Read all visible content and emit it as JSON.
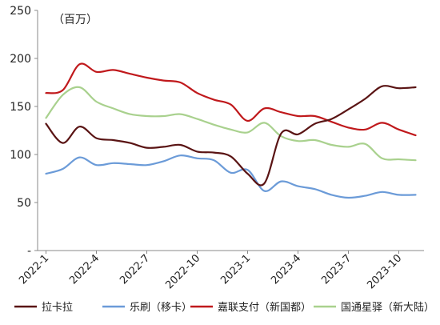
{
  "chart_data": {
    "type": "line",
    "unit_label": "（百万）",
    "ylim": [
      0,
      250
    ],
    "yticks": [
      {
        "value": 250,
        "label": "250"
      },
      {
        "value": 200,
        "label": "200"
      },
      {
        "value": 150,
        "label": "150"
      },
      {
        "value": 100,
        "label": "100"
      },
      {
        "value": 50,
        "label": "50"
      },
      {
        "value": 0,
        "label": "-"
      }
    ],
    "x": [
      "2022-1",
      "2022-2",
      "2022-3",
      "2022-4",
      "2022-5",
      "2022-6",
      "2022-7",
      "2022-8",
      "2022-9",
      "2022-10",
      "2022-11",
      "2022-12",
      "2023-1",
      "2023-2",
      "2023-3",
      "2023-4",
      "2023-5",
      "2023-6",
      "2023-7",
      "2023-8",
      "2023-9",
      "2023-10",
      "2023-11"
    ],
    "xticks": [
      "2022-1",
      "2022-4",
      "2022-7",
      "2022-10",
      "2023-1",
      "2023-4",
      "2023-7",
      "2023-10"
    ],
    "grid": false,
    "legend_position": "bottom",
    "series": [
      {
        "name": "拉卡拉",
        "color": "#5a1414",
        "values": [
          132,
          112,
          129,
          117,
          115,
          112,
          107,
          108,
          110,
          103,
          102,
          98,
          80,
          70,
          122,
          121,
          132,
          137,
          147,
          158,
          171,
          169,
          170
        ]
      },
      {
        "name": "乐刷（移卡）",
        "color": "#6b9bd8",
        "values": [
          80,
          85,
          97,
          89,
          91,
          90,
          89,
          93,
          99,
          96,
          94,
          81,
          84,
          62,
          72,
          67,
          64,
          58,
          55,
          57,
          61,
          58,
          58
        ]
      },
      {
        "name": "嘉联支付（新国都）",
        "color": "#c0191c",
        "values": [
          164,
          167,
          194,
          186,
          188,
          184,
          180,
          177,
          175,
          164,
          157,
          152,
          135,
          148,
          144,
          140,
          140,
          134,
          128,
          126,
          133,
          126,
          120
        ]
      },
      {
        "name": "国通星驿（新大陆）",
        "color": "#a9d18e",
        "values": [
          138,
          162,
          170,
          155,
          148,
          142,
          140,
          140,
          142,
          137,
          131,
          126,
          123,
          133,
          119,
          114,
          115,
          110,
          108,
          111,
          96,
          95,
          94
        ]
      }
    ]
  }
}
